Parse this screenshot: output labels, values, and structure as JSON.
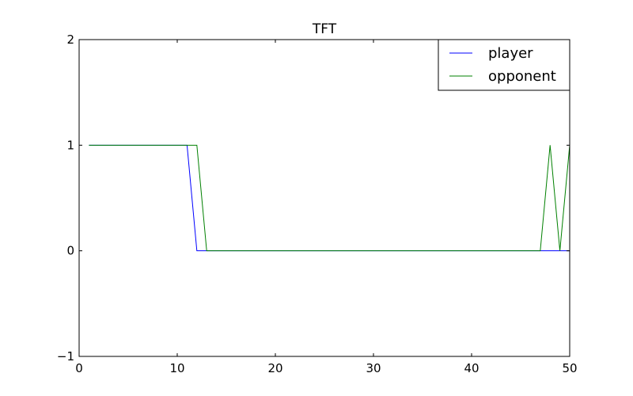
{
  "chart_data": {
    "type": "line",
    "title": "TFT",
    "xlabel": "",
    "ylabel": "",
    "xlim": [
      0,
      50
    ],
    "ylim": [
      -1,
      2
    ],
    "xticks": [
      0,
      10,
      20,
      30,
      40,
      50
    ],
    "yticks": [
      -1,
      0,
      1,
      2
    ],
    "ytick_labels": [
      "−1",
      "0",
      "1",
      "2"
    ],
    "grid": false,
    "legend": "top-right",
    "series": [
      {
        "name": "player",
        "color": "#0000ff",
        "x": [
          1,
          2,
          3,
          4,
          5,
          6,
          7,
          8,
          9,
          10,
          11,
          12,
          13,
          14,
          15,
          16,
          17,
          18,
          19,
          20,
          21,
          22,
          23,
          24,
          25,
          26,
          27,
          28,
          29,
          30,
          31,
          32,
          33,
          34,
          35,
          36,
          37,
          38,
          39,
          40,
          41,
          42,
          43,
          44,
          45,
          46,
          47,
          48,
          49,
          50
        ],
        "values": [
          1,
          1,
          1,
          1,
          1,
          1,
          1,
          1,
          1,
          1,
          1,
          0,
          0,
          0,
          0,
          0,
          0,
          0,
          0,
          0,
          0,
          0,
          0,
          0,
          0,
          0,
          0,
          0,
          0,
          0,
          0,
          0,
          0,
          0,
          0,
          0,
          0,
          0,
          0,
          0,
          0,
          0,
          0,
          0,
          0,
          0,
          0,
          0,
          0,
          0
        ]
      },
      {
        "name": "opponent",
        "color": "#008000",
        "x": [
          1,
          2,
          3,
          4,
          5,
          6,
          7,
          8,
          9,
          10,
          11,
          12,
          13,
          14,
          15,
          16,
          17,
          18,
          19,
          20,
          21,
          22,
          23,
          24,
          25,
          26,
          27,
          28,
          29,
          30,
          31,
          32,
          33,
          34,
          35,
          36,
          37,
          38,
          39,
          40,
          41,
          42,
          43,
          44,
          45,
          46,
          47,
          48,
          49,
          50
        ],
        "values": [
          1,
          1,
          1,
          1,
          1,
          1,
          1,
          1,
          1,
          1,
          1,
          1,
          0,
          0,
          0,
          0,
          0,
          0,
          0,
          0,
          0,
          0,
          0,
          0,
          0,
          0,
          0,
          0,
          0,
          0,
          0,
          0,
          0,
          0,
          0,
          0,
          0,
          0,
          0,
          0,
          0,
          0,
          0,
          0,
          0,
          0,
          0,
          1,
          0,
          1
        ]
      }
    ]
  }
}
